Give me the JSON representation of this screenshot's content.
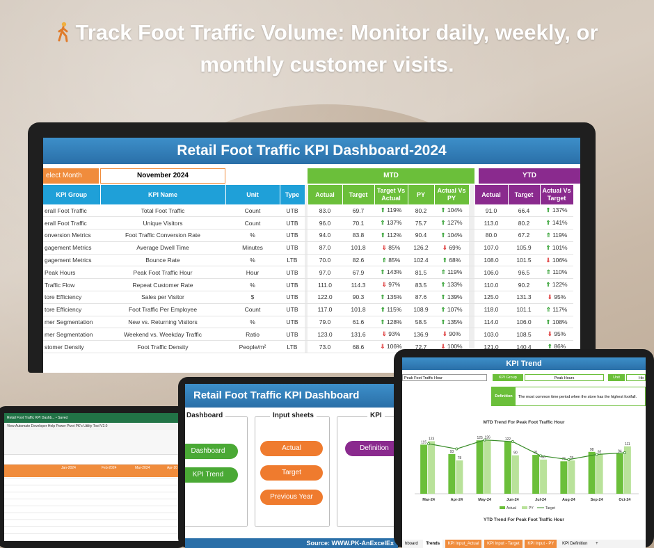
{
  "headline": "Track Foot Traffic Volume: Monitor daily, weekly, or monthly customer visits.",
  "dashboard": {
    "title": "Retail Foot Traffic KPI Dashboard-2024",
    "select_month_label": "elect Month",
    "selected_month": "November 2024",
    "mtd_label": "MTD",
    "ytd_label": "YTD",
    "columns": {
      "group": "KPI Group",
      "name": "KPI Name",
      "unit": "Unit",
      "type": "Type",
      "actual": "Actual",
      "target": "Target",
      "avt": "Target Vs Actual",
      "py": "PY",
      "avp": "Actual Vs PY",
      "y_actual": "Actual",
      "y_target": "Target",
      "y_avt": "Actual Vs Target"
    },
    "rows": [
      {
        "group": "erall Foot Traffic",
        "name": "Total Foot Traffic",
        "unit": "Count",
        "type": "UTB",
        "actual": "83.0",
        "target": "69.7",
        "avt": "119%",
        "avt_dir": "up",
        "py": "80.2",
        "avp": "104%",
        "avp_dir": "up",
        "ya": "91.0",
        "yt": "66.4",
        "yv": "137%",
        "yv_dir": "up"
      },
      {
        "group": "erall Foot Traffic",
        "name": "Unique Visitors",
        "unit": "Count",
        "type": "UTB",
        "actual": "96.0",
        "target": "70.1",
        "avt": "137%",
        "avt_dir": "up",
        "py": "75.7",
        "avp": "127%",
        "avp_dir": "up",
        "ya": "113.0",
        "yt": "80.2",
        "yv": "141%",
        "yv_dir": "up"
      },
      {
        "group": "onversion Metrics",
        "name": "Foot Traffic Conversion Rate",
        "unit": "%",
        "type": "UTB",
        "actual": "94.0",
        "target": "83.8",
        "avt": "112%",
        "avt_dir": "up",
        "py": "90.4",
        "avp": "104%",
        "avp_dir": "up",
        "ya": "80.0",
        "yt": "67.2",
        "yv": "119%",
        "yv_dir": "up"
      },
      {
        "group": "gagement Metrics",
        "name": "Average Dwell Time",
        "unit": "Minutes",
        "type": "UTB",
        "actual": "87.0",
        "target": "101.8",
        "avt": "85%",
        "avt_dir": "down",
        "py": "126.2",
        "avp": "69%",
        "avp_dir": "down",
        "ya": "107.0",
        "yt": "105.9",
        "yv": "101%",
        "yv_dir": "up"
      },
      {
        "group": "gagement Metrics",
        "name": "Bounce Rate",
        "unit": "%",
        "type": "LTB",
        "actual": "70.0",
        "target": "82.6",
        "avt": "85%",
        "avt_dir": "up",
        "py": "102.4",
        "avp": "68%",
        "avp_dir": "up",
        "ya": "108.0",
        "yt": "101.5",
        "yv": "106%",
        "yv_dir": "down"
      },
      {
        "group": "Peak Hours",
        "name": "Peak Foot Traffic Hour",
        "unit": "Hour",
        "type": "UTB",
        "actual": "97.0",
        "target": "67.9",
        "avt": "143%",
        "avt_dir": "up",
        "py": "81.5",
        "avp": "119%",
        "avp_dir": "up",
        "ya": "106.0",
        "yt": "96.5",
        "yv": "110%",
        "yv_dir": "up"
      },
      {
        "group": "Traffic Flow",
        "name": "Repeat Customer Rate",
        "unit": "%",
        "type": "UTB",
        "actual": "111.0",
        "target": "114.3",
        "avt": "97%",
        "avt_dir": "down",
        "py": "83.5",
        "avp": "133%",
        "avp_dir": "up",
        "ya": "110.0",
        "yt": "90.2",
        "yv": "122%",
        "yv_dir": "up"
      },
      {
        "group": "tore Efficiency",
        "name": "Sales per Visitor",
        "unit": "$",
        "type": "UTB",
        "actual": "122.0",
        "target": "90.3",
        "avt": "135%",
        "avt_dir": "up",
        "py": "87.6",
        "avp": "139%",
        "avp_dir": "up",
        "ya": "125.0",
        "yt": "131.3",
        "yv": "95%",
        "yv_dir": "down"
      },
      {
        "group": "tore Efficiency",
        "name": "Foot Traffic Per Employee",
        "unit": "Count",
        "type": "UTB",
        "actual": "117.0",
        "target": "101.8",
        "avt": "115%",
        "avt_dir": "up",
        "py": "108.9",
        "avp": "107%",
        "avp_dir": "up",
        "ya": "118.0",
        "yt": "101.1",
        "yv": "117%",
        "yv_dir": "up"
      },
      {
        "group": "mer Segmentation",
        "name": "New vs. Returning Visitors",
        "unit": "%",
        "type": "UTB",
        "actual": "79.0",
        "target": "61.6",
        "avt": "128%",
        "avt_dir": "up",
        "py": "58.5",
        "avp": "135%",
        "avp_dir": "up",
        "ya": "114.0",
        "yt": "106.0",
        "yv": "108%",
        "yv_dir": "up"
      },
      {
        "group": "mer Segmentation",
        "name": "Weekend vs. Weekday Traffic",
        "unit": "Ratio",
        "type": "UTB",
        "actual": "123.0",
        "target": "131.6",
        "avt": "93%",
        "avt_dir": "down",
        "py": "136.9",
        "avp": "90%",
        "avp_dir": "down",
        "ya": "103.0",
        "yt": "108.5",
        "yv": "95%",
        "yv_dir": "down"
      },
      {
        "group": "stomer Density",
        "name": "Foot Traffic Density",
        "unit": "People/m²",
        "type": "LTB",
        "actual": "73.0",
        "target": "68.6",
        "avt": "106%",
        "avt_dir": "down",
        "py": "72.7",
        "avp": "100%",
        "avp_dir": "down",
        "ya": "121.0",
        "yt": "140.4",
        "yv": "86%",
        "yv_dir": "up"
      }
    ]
  },
  "excel_tablet": {
    "title_bar": "Retail Foot Traffic KPI Dashb...  •  Saved",
    "menu": "View   Automate   Developer   Help   Power Pivot   PK's Utility Tool V2.0",
    "months": [
      "Jan-2024",
      "Feb-2024",
      "Mar-2024",
      "Apr-20"
    ]
  },
  "nav_tablet": {
    "title": "Retail Foot Traffic KPI Dashboard",
    "col1_head": "Dashboard",
    "col2_head": "Input sheets",
    "col3_head": "KPI",
    "btn_dashboard": "Dashboard",
    "btn_trend": "KPI Trend",
    "btn_actual": "Actual",
    "btn_target": "Target",
    "btn_prev": "Previous Year",
    "btn_definition": "Definition",
    "source": "Source: WWW.PK-AnExcelEx"
  },
  "trend_tablet": {
    "title": "KPI Trend",
    "kpi_select": "Peak Foot Traffic Hour",
    "kpi_group_label": "KPI Group",
    "kpi_group_value": "Peak Hours",
    "unit_label": "Unit",
    "unit_value": "Ho",
    "definition_label": "Definition",
    "definition_text": "The most common time period when the store has the highest footfall.",
    "mtd_chart_title": "MTD Trend For Peak Foot Traffic Hour",
    "ytd_chart_title": "YTD Trend For Peak Foot Traffic Hour",
    "legend": [
      "Actual",
      "PY",
      "Target"
    ],
    "tabs": [
      "hboard",
      "Trends",
      "KPI Input_Actual",
      "KPI Input - Target",
      "KPI Input - PY",
      "KPI Definition",
      "+"
    ]
  },
  "chart_data": {
    "type": "bar",
    "title": "MTD Trend For Peak Foot Traffic Hour",
    "categories": [
      "Mar-24",
      "Apr-24",
      "May-24",
      "Jun-24",
      "Jul-24",
      "Aug-24",
      "Sep-24",
      "Oct-24"
    ],
    "series": [
      {
        "name": "Actual",
        "type": "bar",
        "values": [
          115,
          93,
          125,
          122,
          91,
          76,
          98,
          94
        ]
      },
      {
        "name": "PY",
        "type": "bar",
        "values": [
          123,
          78,
          126,
          90,
          80,
          78,
          92,
          111
        ]
      },
      {
        "name": "Target",
        "type": "line",
        "values": [
          117,
          105,
          126,
          122,
          89,
          80,
          92,
          96
        ]
      }
    ]
  }
}
